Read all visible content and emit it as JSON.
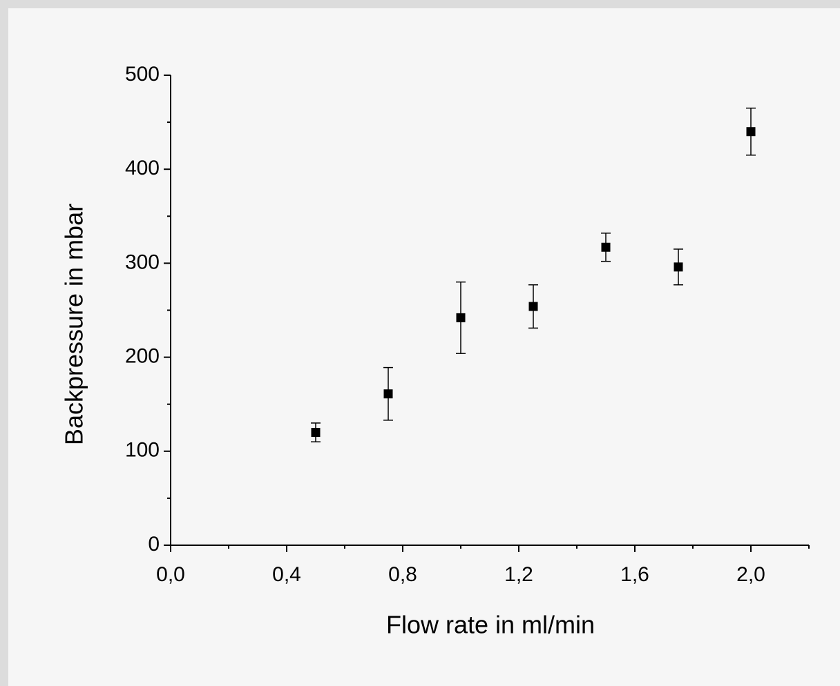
{
  "chart_data": {
    "type": "scatter",
    "x_label": "Flow rate in ml/min",
    "y_label": "Backpressure in mbar",
    "x": [
      0.5,
      0.75,
      1.0,
      1.25,
      1.5,
      1.75,
      2.0
    ],
    "values": [
      120,
      161,
      242,
      254,
      317,
      296,
      440
    ],
    "errors": [
      10,
      28,
      38,
      23,
      15,
      19,
      25
    ],
    "color": "#000000",
    "xlim": [
      0,
      2.2
    ],
    "xticks": [
      {
        "value": 0,
        "label": "0,0"
      },
      {
        "value": 0.4,
        "label": "0,4"
      },
      {
        "value": 0.8,
        "label": "0,8"
      },
      {
        "value": 1.2,
        "label": "1,2"
      },
      {
        "value": 1.6,
        "label": "1,6"
      },
      {
        "value": 2.0,
        "label": "2,0"
      }
    ],
    "xminorticks": [
      0.2,
      0.6,
      1.0,
      1.4,
      1.8,
      2.2
    ],
    "ylim": [
      0,
      500
    ],
    "yticks": [
      0,
      100,
      200,
      300,
      400,
      500
    ],
    "yminorticks": [
      50,
      150,
      250,
      350,
      450
    ],
    "grid": false
  }
}
